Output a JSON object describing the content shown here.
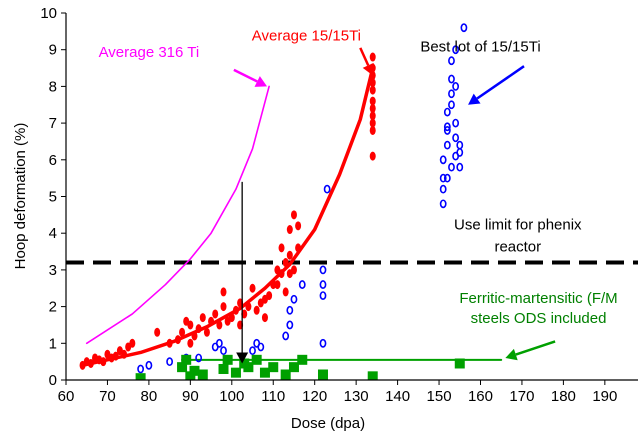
{
  "chart_data": {
    "type": "scatter",
    "title": "",
    "xlabel": "Dose (dpa)",
    "ylabel": "Hoop deformation (%)",
    "xlim": [
      60,
      198
    ],
    "ylim": [
      0,
      10
    ],
    "x_ticks": [
      60,
      70,
      80,
      90,
      100,
      110,
      120,
      130,
      140,
      150,
      160,
      170,
      180,
      190
    ],
    "y_ticks": [
      0,
      1,
      2,
      3,
      4,
      5,
      6,
      7,
      8,
      9,
      10
    ],
    "grid": false,
    "series": [
      {
        "name": "Average 316 Ti",
        "kind": "line",
        "color": "#ff00ff",
        "x": [
          65,
          76,
          84,
          90,
          95,
          101,
          105,
          109
        ],
        "y": [
          1.0,
          1.8,
          2.6,
          3.3,
          4.0,
          5.2,
          6.3,
          8.0
        ]
      },
      {
        "name": "Average 15/15Ti",
        "kind": "line",
        "color": "#ff0000",
        "x": [
          64,
          70,
          78,
          86,
          94,
          102,
          108,
          114,
          120,
          126,
          131,
          134
        ],
        "y": [
          0.4,
          0.55,
          0.75,
          1.05,
          1.45,
          1.95,
          2.5,
          3.15,
          4.1,
          5.6,
          7.1,
          8.5
        ]
      },
      {
        "name": "15/15Ti",
        "kind": "points",
        "color": "#ff0000",
        "x": [
          64,
          65,
          66,
          67,
          68,
          69,
          70,
          71,
          72,
          73,
          74,
          75,
          76,
          82,
          85,
          87,
          88,
          89,
          90,
          90,
          91,
          92,
          93,
          94,
          95,
          96,
          97,
          98,
          98,
          99,
          100,
          101,
          102,
          102,
          103,
          104,
          105,
          106,
          107,
          108,
          108,
          109,
          110,
          111,
          111,
          112,
          112,
          113,
          113,
          114,
          114,
          114,
          115,
          115,
          116,
          116,
          134,
          134,
          134,
          134,
          134,
          134,
          134,
          134,
          134,
          134,
          134
        ],
        "y": [
          0.4,
          0.5,
          0.45,
          0.6,
          0.55,
          0.5,
          0.7,
          0.6,
          0.65,
          0.8,
          0.7,
          0.9,
          1.0,
          1.3,
          1.0,
          1.1,
          1.3,
          1.6,
          1.5,
          1.0,
          1.2,
          1.4,
          1.7,
          1.3,
          1.6,
          1.8,
          1.5,
          2.4,
          2.0,
          1.6,
          1.7,
          1.9,
          2.1,
          1.5,
          1.8,
          2.0,
          2.5,
          1.9,
          2.1,
          2.2,
          1.7,
          2.3,
          2.6,
          3.0,
          2.6,
          3.6,
          2.9,
          3.2,
          2.4,
          4.1,
          3.4,
          2.9,
          4.5,
          3.0,
          4.2,
          3.6,
          6.1,
          6.8,
          7.2,
          7.6,
          7.9,
          8.1,
          8.3,
          8.5,
          8.8,
          7.4,
          7.0
        ]
      },
      {
        "name": "Best lot of 15/15Ti",
        "kind": "points",
        "color": "#0000ff",
        "x": [
          78,
          80,
          85,
          89,
          92,
          96,
          97,
          98,
          105,
          106,
          107,
          113,
          114,
          114,
          115,
          117,
          122,
          122,
          122,
          122,
          123,
          151,
          151,
          151,
          152,
          152,
          152,
          153,
          153,
          153,
          154,
          154,
          154,
          155,
          155,
          156,
          151,
          152,
          153,
          154,
          155,
          152,
          153,
          154
        ],
        "y": [
          0.3,
          0.4,
          0.5,
          0.6,
          0.6,
          0.9,
          1.0,
          0.8,
          0.8,
          1.0,
          0.9,
          1.2,
          1.5,
          1.9,
          2.2,
          2.6,
          2.3,
          2.6,
          3.0,
          1.0,
          5.2,
          4.8,
          5.5,
          6.0,
          6.4,
          6.8,
          7.3,
          7.8,
          8.2,
          8.7,
          9.0,
          7.0,
          6.6,
          6.2,
          5.8,
          9.6,
          5.2,
          5.5,
          5.8,
          6.1,
          6.4,
          6.9,
          7.5,
          8.0
        ]
      },
      {
        "name": "Ferritic-martensitic (F/M) steels ODS included",
        "kind": "points",
        "color": "#00a000",
        "x": [
          78,
          88,
          89,
          90,
          91,
          93,
          98,
          99,
          101,
          103,
          104,
          106,
          108,
          110,
          113,
          115,
          117,
          122,
          134,
          155
        ],
        "y": [
          0.05,
          0.35,
          0.55,
          0.1,
          0.25,
          0.15,
          0.3,
          0.55,
          0.2,
          0.45,
          0.35,
          0.55,
          0.2,
          0.35,
          0.15,
          0.35,
          0.55,
          0.15,
          0.1,
          0.45
        ]
      },
      {
        "name": "Ferritic-martensitic baseline",
        "kind": "line",
        "color": "#00a000",
        "x": [
          88,
          165
        ],
        "y": [
          0.55,
          0.55
        ]
      }
    ],
    "reference_lines": [
      {
        "name": "Use limit for phenix reactor",
        "orientation": "horizontal",
        "y": 3.2,
        "color": "#000000",
        "style": "dashed"
      }
    ],
    "annotations": [
      {
        "text": "Average 316 Ti",
        "color": "#ff00ff",
        "at": [
          80,
          8.8
        ]
      },
      {
        "text": "Average 15/15Ti",
        "color": "#ff0000",
        "at": [
          118,
          9.25
        ]
      },
      {
        "text": "Best lot of 15/15Ti",
        "color": "#000000",
        "at": [
          160,
          8.95
        ]
      },
      {
        "text": "Use limit for phenix",
        "color": "#000000",
        "at": [
          169,
          4.1
        ]
      },
      {
        "text": "reactor",
        "color": "#000000",
        "at": [
          169,
          3.5
        ]
      },
      {
        "text": "Ferritic-martensitic (F/M",
        "color": "#008000",
        "at": [
          174,
          2.1
        ]
      },
      {
        "text": "steels ODS included",
        "color": "#008000",
        "at": [
          174,
          1.55
        ]
      }
    ],
    "arrows": [
      {
        "color": "#ff00ff",
        "from": [
          100.5,
          8.45
        ],
        "to": [
          108.5,
          8.0
        ]
      },
      {
        "color": "#ff0000",
        "from": [
          131,
          9.05
        ],
        "to": [
          134,
          8.3
        ]
      },
      {
        "color": "#0000ff",
        "from": [
          170.5,
          8.55
        ],
        "to": [
          157,
          7.5
        ]
      },
      {
        "color": "#000000",
        "from": [
          102.5,
          5.4
        ],
        "to": [
          102.5,
          0.45
        ]
      },
      {
        "color": "#00a000",
        "from": [
          178,
          1.05
        ],
        "to": [
          166,
          0.6
        ]
      }
    ]
  }
}
